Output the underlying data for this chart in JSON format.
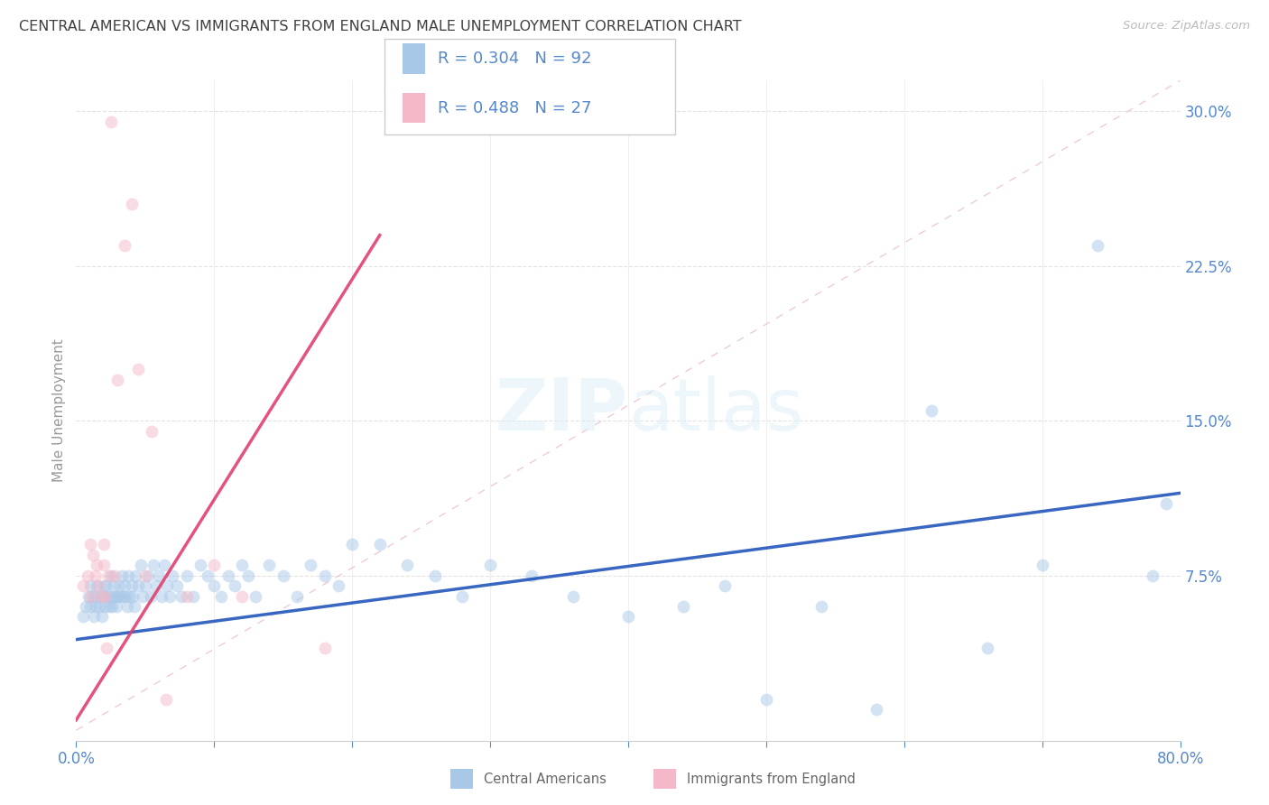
{
  "title": "CENTRAL AMERICAN VS IMMIGRANTS FROM ENGLAND MALE UNEMPLOYMENT CORRELATION CHART",
  "source": "Source: ZipAtlas.com",
  "ylabel": "Male Unemployment",
  "xmin": 0.0,
  "xmax": 0.8,
  "ymin": -0.005,
  "ymax": 0.315,
  "yticks": [
    0.0,
    0.075,
    0.15,
    0.225,
    0.3
  ],
  "ytick_labels": [
    "",
    "7.5%",
    "15.0%",
    "22.5%",
    "30.0%"
  ],
  "xticks": [
    0.0,
    0.1,
    0.2,
    0.3,
    0.4,
    0.5,
    0.6,
    0.7,
    0.8
  ],
  "legend1_label": "R = 0.304   N = 92",
  "legend2_label": "R = 0.488   N = 27",
  "series1_color": "#a8c8e8",
  "series2_color": "#f4b8c8",
  "line1_color": "#2255bb",
  "line2_color": "#e04070",
  "diagonal_color": "#e8c0cc",
  "background_color": "#ffffff",
  "grid_color": "#e0e0e0",
  "title_color": "#404040",
  "axis_label_color": "#5588cc",
  "watermark": "ZIPatlas",
  "blue_x": [
    0.005,
    0.007,
    0.009,
    0.01,
    0.01,
    0.012,
    0.013,
    0.014,
    0.015,
    0.015,
    0.017,
    0.018,
    0.019,
    0.02,
    0.02,
    0.021,
    0.022,
    0.023,
    0.024,
    0.025,
    0.025,
    0.026,
    0.027,
    0.028,
    0.029,
    0.03,
    0.031,
    0.032,
    0.033,
    0.034,
    0.035,
    0.036,
    0.037,
    0.038,
    0.039,
    0.04,
    0.041,
    0.042,
    0.043,
    0.045,
    0.047,
    0.048,
    0.05,
    0.052,
    0.054,
    0.056,
    0.058,
    0.06,
    0.062,
    0.064,
    0.066,
    0.068,
    0.07,
    0.073,
    0.076,
    0.08,
    0.085,
    0.09,
    0.095,
    0.1,
    0.105,
    0.11,
    0.115,
    0.12,
    0.125,
    0.13,
    0.14,
    0.15,
    0.16,
    0.17,
    0.18,
    0.19,
    0.2,
    0.22,
    0.24,
    0.26,
    0.28,
    0.3,
    0.33,
    0.36,
    0.4,
    0.44,
    0.47,
    0.5,
    0.54,
    0.58,
    0.62,
    0.66,
    0.7,
    0.74,
    0.78,
    0.79
  ],
  "blue_y": [
    0.055,
    0.06,
    0.065,
    0.07,
    0.06,
    0.065,
    0.055,
    0.06,
    0.065,
    0.07,
    0.06,
    0.065,
    0.055,
    0.07,
    0.065,
    0.06,
    0.07,
    0.065,
    0.06,
    0.075,
    0.065,
    0.06,
    0.07,
    0.065,
    0.06,
    0.065,
    0.07,
    0.065,
    0.075,
    0.065,
    0.07,
    0.065,
    0.06,
    0.075,
    0.065,
    0.07,
    0.065,
    0.06,
    0.075,
    0.07,
    0.08,
    0.065,
    0.07,
    0.075,
    0.065,
    0.08,
    0.07,
    0.075,
    0.065,
    0.08,
    0.07,
    0.065,
    0.075,
    0.07,
    0.065,
    0.075,
    0.065,
    0.08,
    0.075,
    0.07,
    0.065,
    0.075,
    0.07,
    0.08,
    0.075,
    0.065,
    0.08,
    0.075,
    0.065,
    0.08,
    0.075,
    0.07,
    0.09,
    0.09,
    0.08,
    0.075,
    0.065,
    0.08,
    0.075,
    0.065,
    0.055,
    0.06,
    0.07,
    0.015,
    0.06,
    0.01,
    0.155,
    0.04,
    0.08,
    0.235,
    0.075,
    0.11
  ],
  "pink_x": [
    0.005,
    0.008,
    0.01,
    0.01,
    0.012,
    0.014,
    0.015,
    0.016,
    0.018,
    0.02,
    0.02,
    0.021,
    0.022,
    0.023,
    0.025,
    0.028,
    0.03,
    0.035,
    0.04,
    0.045,
    0.05,
    0.055,
    0.065,
    0.08,
    0.1,
    0.12,
    0.18
  ],
  "pink_y": [
    0.07,
    0.075,
    0.09,
    0.065,
    0.085,
    0.075,
    0.08,
    0.07,
    0.065,
    0.09,
    0.08,
    0.065,
    0.04,
    0.075,
    0.295,
    0.075,
    0.17,
    0.235,
    0.255,
    0.175,
    0.075,
    0.145,
    0.015,
    0.065,
    0.08,
    0.065,
    0.04
  ],
  "marker_size": 100,
  "marker_alpha": 0.5
}
